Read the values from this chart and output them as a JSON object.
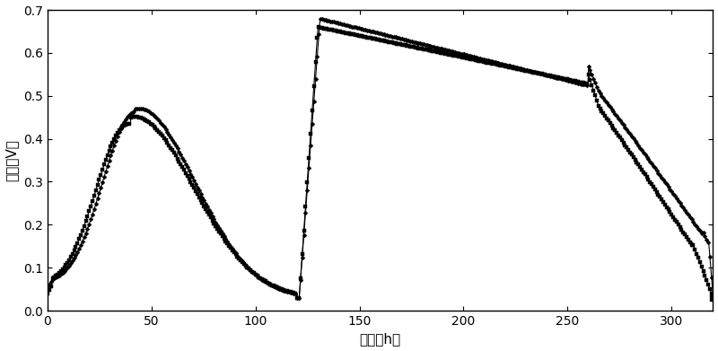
{
  "title": "",
  "xlabel": "时间（h）",
  "ylabel": "电压（V）",
  "xlim": [
    0,
    320
  ],
  "ylim": [
    0,
    0.7
  ],
  "xticks": [
    0,
    50,
    100,
    150,
    200,
    250,
    300
  ],
  "yticks": [
    0,
    0.1,
    0.2,
    0.3,
    0.4,
    0.5,
    0.6,
    0.7
  ],
  "figsize": [
    8.0,
    3.91
  ],
  "dpi": 100,
  "line_color": "#000000",
  "marker_size": 2.5,
  "line_width": 0.8,
  "bg_color": "#ffffff"
}
